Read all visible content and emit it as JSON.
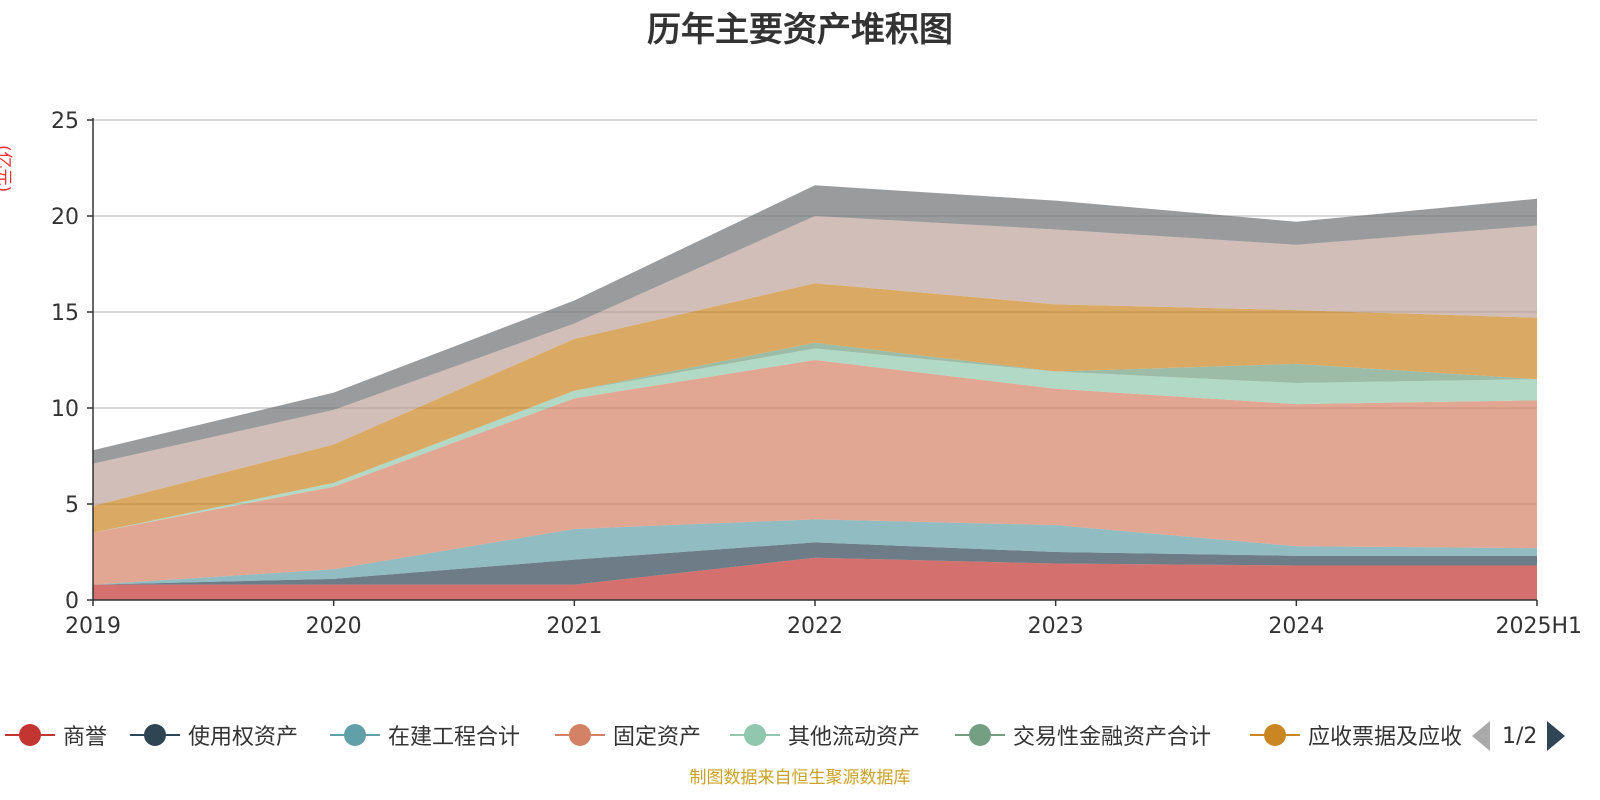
{
  "title": "历年主要资产堆积图",
  "unit_label": "(亿元)",
  "footer": "制图数据来自恒生聚源数据库",
  "pager": {
    "text": "1/2"
  },
  "legend": [
    {
      "name": "商誉",
      "color": "#c23531"
    },
    {
      "name": "使用权资产",
      "color": "#2f4554"
    },
    {
      "name": "在建工程合计",
      "color": "#61a0a8"
    },
    {
      "name": "固定资产",
      "color": "#d48265"
    },
    {
      "name": "其他流动资产",
      "color": "#91c7ae"
    },
    {
      "name": "交易性金融资产合计",
      "color": "#749f83"
    },
    {
      "name": "应收票据及应收",
      "color": "#ca8622"
    }
  ],
  "chart_data": {
    "type": "area",
    "stacked": true,
    "categories": [
      "2019",
      "2020",
      "2021",
      "2022",
      "2023",
      "2024",
      "2025H1"
    ],
    "ylim": [
      0,
      25
    ],
    "yticks": [
      0,
      5,
      10,
      15,
      20,
      25
    ],
    "grid": true,
    "series": [
      {
        "name": "商誉",
        "color": "#c23531",
        "values": [
          0.8,
          0.8,
          0.8,
          2.2,
          1.9,
          1.8,
          1.8
        ]
      },
      {
        "name": "使用权资产",
        "color": "#2f4554",
        "values": [
          0.0,
          0.3,
          1.3,
          0.8,
          0.6,
          0.5,
          0.5
        ]
      },
      {
        "name": "在建工程合计",
        "color": "#61a0a8",
        "values": [
          0.0,
          0.5,
          1.6,
          1.2,
          1.4,
          0.5,
          0.4
        ]
      },
      {
        "name": "固定资产",
        "color": "#d48265",
        "values": [
          2.7,
          4.3,
          6.8,
          8.3,
          7.1,
          7.4,
          7.7
        ]
      },
      {
        "name": "其他流动资产",
        "color": "#91c7ae",
        "values": [
          0.0,
          0.2,
          0.4,
          0.6,
          0.9,
          1.1,
          1.1
        ]
      },
      {
        "name": "交易性金融资产合计",
        "color": "#749f83",
        "values": [
          0.0,
          0.0,
          0.0,
          0.3,
          0.0,
          1.0,
          0.0
        ]
      },
      {
        "name": "应收票据及应收",
        "color": "#ca8622",
        "values": [
          1.4,
          2.0,
          2.7,
          3.1,
          3.5,
          2.8,
          3.2
        ]
      },
      {
        "color": "#bda29a",
        "values": [
          2.2,
          1.8,
          0.8,
          3.5,
          3.9,
          3.4,
          4.8
        ]
      },
      {
        "color": "#6e7074",
        "values": [
          0.7,
          0.9,
          1.2,
          1.6,
          1.5,
          1.2,
          1.4
        ]
      }
    ]
  }
}
